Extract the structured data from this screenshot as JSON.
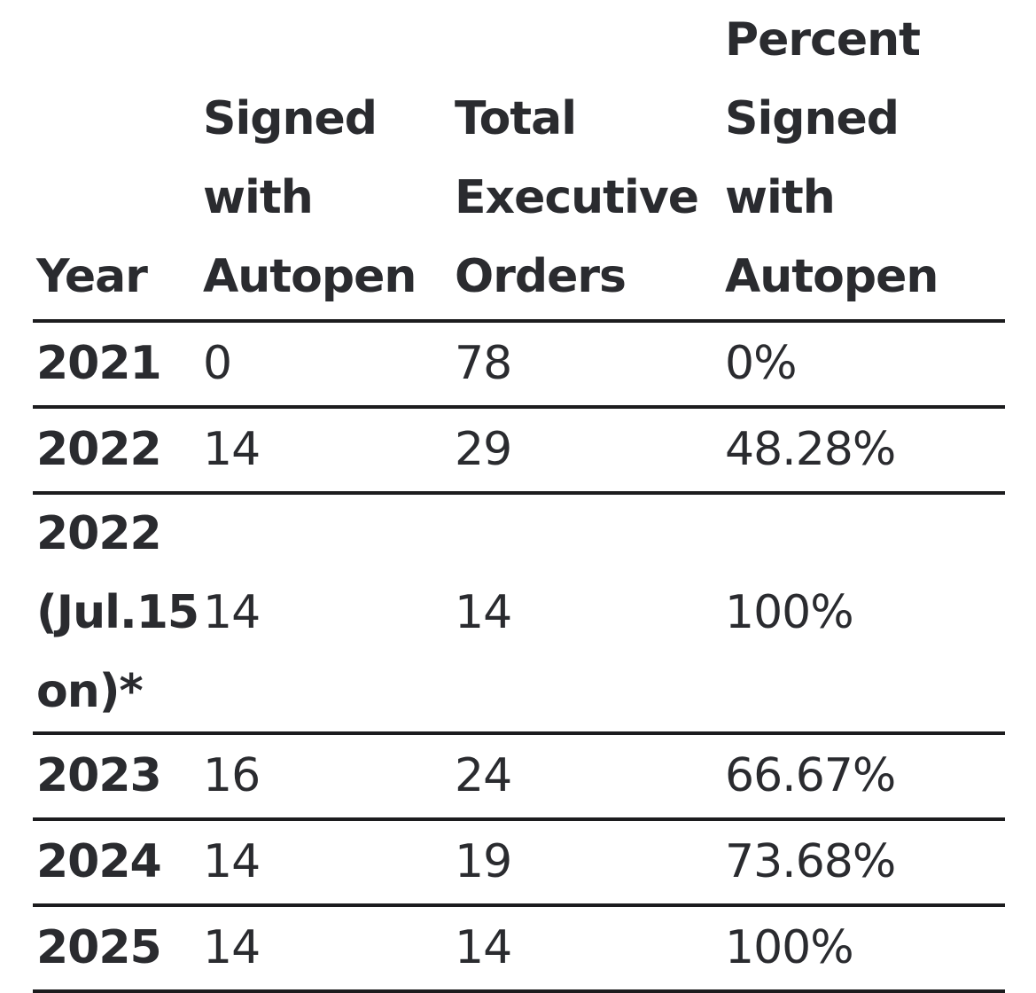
{
  "table": {
    "headers": [
      "Year",
      "Signed with Autopen",
      "Total Executive Orders",
      "Percent Signed with Autopen"
    ],
    "rows": [
      {
        "year": "2021",
        "signed": "0",
        "total": "78",
        "percent": "0%"
      },
      {
        "year": "2022",
        "signed": "14",
        "total": "29",
        "percent": "48.28%"
      },
      {
        "year": "2022 (Jul.15 on)*",
        "signed": "14",
        "total": "14",
        "percent": "100%"
      },
      {
        "year": "2023",
        "signed": "16",
        "total": "24",
        "percent": "66.67%"
      },
      {
        "year": "2024",
        "signed": "14",
        "total": "19",
        "percent": "73.68%"
      },
      {
        "year": "2025",
        "signed": "14",
        "total": "14",
        "percent": "100%"
      }
    ]
  }
}
